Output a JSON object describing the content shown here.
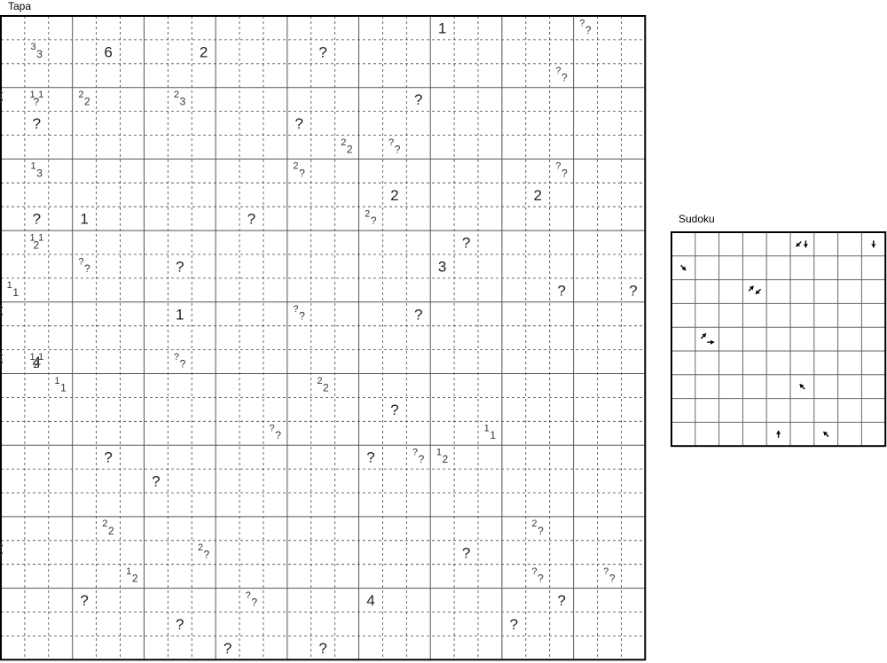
{
  "tapa": {
    "title": "Tapa",
    "rows": 27,
    "cols": 27,
    "block": 3,
    "clues": [
      {
        "r": 0,
        "c": 18,
        "type": "big",
        "text": "1"
      },
      {
        "r": 0,
        "c": 24,
        "type": "pair",
        "a": "?",
        "b": "?"
      },
      {
        "r": 1,
        "c": 1,
        "type": "pair",
        "a": "3",
        "b": "3"
      },
      {
        "r": 1,
        "c": 4,
        "type": "big",
        "text": "6"
      },
      {
        "r": 1,
        "c": 8,
        "type": "big",
        "text": "2"
      },
      {
        "r": 1,
        "c": 13,
        "type": "big",
        "text": "?"
      },
      {
        "r": 2,
        "c": 23,
        "type": "pair",
        "a": "?",
        "b": "?"
      },
      {
        "r": 3,
        "c": 3,
        "type": "pair",
        "a": "2",
        "b": "2"
      },
      {
        "r": 3,
        "c": 7,
        "type": "pair",
        "a": "2",
        "b": "3"
      },
      {
        "r": 3,
        "c": "?",
        "type": "triple",
        "a": "2",
        "b": "?"
      },
      {
        "r": 3,
        "c": "1",
        "type": "triple",
        "a": "1",
        "b": "?"
      },
      {
        "r": 3,
        "c": 17,
        "type": "big",
        "text": "?"
      },
      {
        "r": 4,
        "c": 1,
        "type": "big",
        "text": "?"
      },
      {
        "r": 4,
        "c": 12,
        "type": "big",
        "text": "?"
      },
      {
        "r": 5,
        "c": 14,
        "type": "pair",
        "a": "2",
        "b": "2"
      },
      {
        "r": 5,
        "c": 16,
        "type": "pair",
        "a": "?",
        "b": "?"
      },
      {
        "r": 6,
        "c": 1,
        "type": "pair",
        "a": "1",
        "b": "3"
      },
      {
        "r": 6,
        "c": 12,
        "type": "pair",
        "a": "2",
        "b": "?"
      },
      {
        "r": 6,
        "c": 23,
        "type": "pair",
        "a": "?",
        "b": "?"
      },
      {
        "r": 7,
        "c": 16,
        "type": "big",
        "text": "2"
      },
      {
        "r": 7,
        "c": 22,
        "type": "big",
        "text": "2"
      },
      {
        "r": 8,
        "c": 1,
        "type": "big",
        "text": "?"
      },
      {
        "r": 8,
        "c": 3,
        "type": "big",
        "text": "1"
      },
      {
        "r": 8,
        "c": 10,
        "type": "big",
        "text": "?"
      },
      {
        "r": 8,
        "c": 15,
        "type": "pair",
        "a": "2",
        "b": "?"
      },
      {
        "r": 9,
        "c": 19,
        "type": "big",
        "text": "?"
      },
      {
        "r": 9,
        "c": "1",
        "type": "triple",
        "a": "1",
        "b": "2"
      },
      {
        "r": 10,
        "c": 3,
        "type": "pair",
        "a": "?",
        "b": "?"
      },
      {
        "r": 10,
        "c": 7,
        "type": "big",
        "text": "?"
      },
      {
        "r": 10,
        "c": 18,
        "type": "big",
        "text": "3"
      },
      {
        "r": 11,
        "c": 0,
        "type": "pair",
        "a": "1",
        "b": "1"
      },
      {
        "r": 11,
        "c": 23,
        "type": "big",
        "text": "?"
      },
      {
        "r": 11,
        "c": 26,
        "type": "big",
        "text": "?"
      },
      {
        "r": 12,
        "c": 7,
        "type": "big",
        "text": "1"
      },
      {
        "r": 12,
        "c": 12,
        "type": "pair",
        "a": "?",
        "b": "?"
      },
      {
        "r": 12,
        "c": 17,
        "type": "big",
        "text": "?"
      },
      {
        "r": 12,
        "c": "?",
        "type": "triple",
        "a": "?",
        "b": "?"
      },
      {
        "r": 14,
        "c": 1,
        "type": "big",
        "text": "4"
      },
      {
        "r": 14,
        "c": 7,
        "type": "pair",
        "a": "?",
        "b": "?"
      },
      {
        "r": 14,
        "c": "1",
        "type": "triple",
        "a": "1",
        "b": "2"
      },
      {
        "r": 14,
        "c": "?",
        "type": "triple",
        "a": "2",
        "b": "?"
      },
      {
        "r": 15,
        "c": 2,
        "type": "pair",
        "a": "1",
        "b": "1"
      },
      {
        "r": 15,
        "c": 13,
        "type": "pair",
        "a": "2",
        "b": "2"
      },
      {
        "r": 16,
        "c": 16,
        "type": "big",
        "text": "?"
      },
      {
        "r": 17,
        "c": 11,
        "type": "pair",
        "a": "?",
        "b": "?"
      },
      {
        "r": 17,
        "c": 20,
        "type": "pair",
        "a": "1",
        "b": "1"
      },
      {
        "r": 18,
        "c": 4,
        "type": "big",
        "text": "?"
      },
      {
        "r": 18,
        "c": 15,
        "type": "big",
        "text": "?"
      },
      {
        "r": 18,
        "c": 17,
        "type": "pair",
        "a": "?",
        "b": "?"
      },
      {
        "r": 18,
        "c": 18,
        "type": "pair",
        "a": "1",
        "b": "2"
      },
      {
        "r": 19,
        "c": 6,
        "type": "big",
        "text": "?"
      },
      {
        "r": 21,
        "c": 4,
        "type": "pair",
        "a": "2",
        "b": "2"
      },
      {
        "r": 21,
        "c": 22,
        "type": "pair",
        "a": "2",
        "b": "?"
      },
      {
        "r": 22,
        "c": "?",
        "type": "triple",
        "a": "?",
        "b": "?"
      },
      {
        "r": 22,
        "c": 8,
        "type": "pair",
        "a": "2",
        "b": "?"
      },
      {
        "r": 22,
        "c": 19,
        "type": "big",
        "text": "?"
      },
      {
        "r": 23,
        "c": 5,
        "type": "pair",
        "a": "1",
        "b": "2"
      },
      {
        "r": 23,
        "c": 22,
        "type": "pair",
        "a": "?",
        "b": "?"
      },
      {
        "r": 23,
        "c": 25,
        "type": "pair",
        "a": "?",
        "b": "?"
      },
      {
        "r": 24,
        "c": 3,
        "type": "big",
        "text": "?"
      },
      {
        "r": 24,
        "c": 10,
        "type": "pair",
        "a": "?",
        "b": "?"
      },
      {
        "r": 24,
        "c": 15,
        "type": "big",
        "text": "4"
      },
      {
        "r": 24,
        "c": 23,
        "type": "big",
        "text": "?"
      },
      {
        "r": 25,
        "c": 7,
        "type": "big",
        "text": "?"
      },
      {
        "r": 25,
        "c": 21,
        "type": "big",
        "text": "?"
      },
      {
        "r": 26,
        "c": 9,
        "type": "big",
        "text": "?"
      },
      {
        "r": 26,
        "c": 13,
        "type": "big",
        "text": "?"
      }
    ]
  },
  "sudoku": {
    "title": "Sudoku",
    "rows": 9,
    "cols": 9,
    "arrows": [
      {
        "r": 0,
        "c": 5,
        "dirs": [
          "sw",
          "s"
        ]
      },
      {
        "r": 0,
        "c": 8,
        "dirs": [
          "s"
        ]
      },
      {
        "r": 1,
        "c": 0,
        "dirs": [
          "se"
        ]
      },
      {
        "r": 2,
        "c": 3,
        "dirs": [
          "ne",
          "sw"
        ]
      },
      {
        "r": 4,
        "c": 1,
        "dirs": [
          "ne",
          "e"
        ]
      },
      {
        "r": 6,
        "c": 5,
        "dirs": [
          "nw"
        ]
      },
      {
        "r": 8,
        "c": 4,
        "dirs": [
          "n"
        ]
      },
      {
        "r": 8,
        "c": 6,
        "dirs": [
          "nw"
        ]
      }
    ]
  }
}
